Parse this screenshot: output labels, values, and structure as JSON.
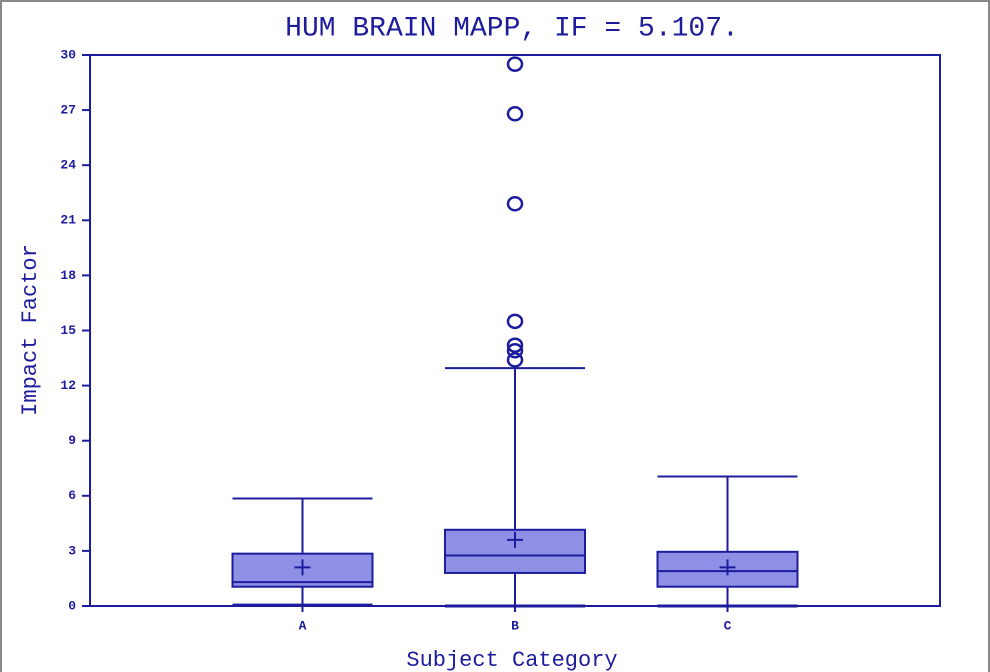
{
  "chart_data": {
    "type": "box",
    "title": "HUM BRAIN MAPP, IF = 5.107.",
    "x_label": "Subject Category",
    "y_label": "Impact Factor",
    "categories": [
      "A",
      "B",
      "C"
    ],
    "boxes": [
      {
        "min": 0.05,
        "q1": 1.05,
        "median": 1.3,
        "q3": 2.85,
        "max": 5.85,
        "mean": 2.1,
        "outliers": []
      },
      {
        "min": 0,
        "q1": 1.8,
        "median": 2.75,
        "q3": 4.15,
        "max": 12.95,
        "mean": 3.6,
        "outliers": [
          13.4,
          13.9,
          14.2,
          15.5,
          21.9,
          26.8,
          29.5
        ]
      },
      {
        "min": 0,
        "q1": 1.05,
        "median": 1.9,
        "q3": 2.95,
        "max": 7.05,
        "mean": 2.1,
        "outliers": []
      }
    ],
    "color": "#8f8fe6",
    "line_color": "#1c1c9c",
    "ylim": [
      0,
      30
    ],
    "yticks": [
      0,
      3,
      6,
      9,
      12,
      15,
      18,
      21,
      24,
      27,
      30
    ]
  }
}
